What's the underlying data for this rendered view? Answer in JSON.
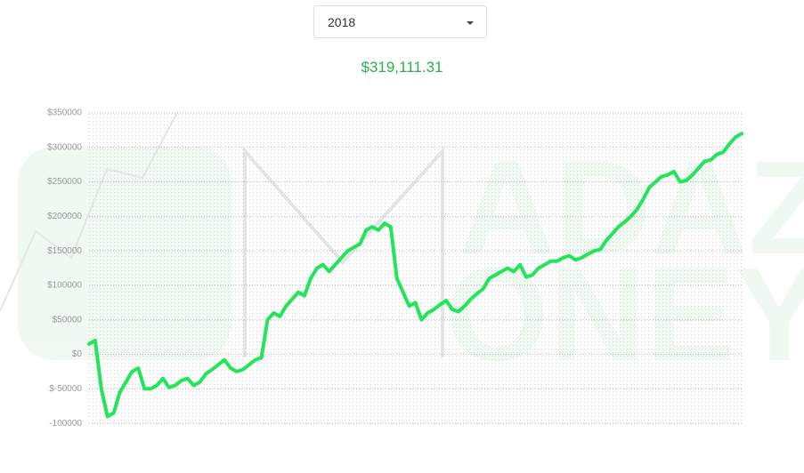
{
  "dropdown": {
    "selected": "2018"
  },
  "total": "$319,111.31",
  "watermark": [
    "ADAZ",
    "ONEY"
  ],
  "chart_data": {
    "type": "line",
    "color": "#22e55a",
    "grid": true,
    "ylim": [
      -105000,
      350000
    ],
    "yticks": [
      {
        "value": 350000,
        "label": "$350000"
      },
      {
        "value": 300000,
        "label": "$300000"
      },
      {
        "value": 250000,
        "label": "$250000"
      },
      {
        "value": 200000,
        "label": "$200000"
      },
      {
        "value": 150000,
        "label": "$150000"
      },
      {
        "value": 100000,
        "label": "$100000"
      },
      {
        "value": 50000,
        "label": "$50000"
      },
      {
        "value": 0,
        "label": "$0"
      },
      {
        "value": -50000,
        "label": "$-50000"
      },
      {
        "value": -100000,
        "label": "-100000"
      }
    ],
    "values": [
      15000,
      20000,
      -50000,
      -90000,
      -85000,
      -55000,
      -40000,
      -25000,
      -20000,
      -50000,
      -50000,
      -45000,
      -35000,
      -48000,
      -45000,
      -38000,
      -35000,
      -45000,
      -40000,
      -28000,
      -22000,
      -15000,
      -8000,
      -20000,
      -25000,
      -22000,
      -15000,
      -8000,
      -5000,
      50000,
      60000,
      55000,
      70000,
      80000,
      90000,
      85000,
      110000,
      125000,
      130000,
      120000,
      130000,
      140000,
      150000,
      155000,
      160000,
      180000,
      185000,
      180000,
      190000,
      185000,
      110000,
      90000,
      70000,
      75000,
      50000,
      60000,
      65000,
      72000,
      78000,
      65000,
      62000,
      70000,
      80000,
      88000,
      95000,
      110000,
      115000,
      120000,
      125000,
      120000,
      130000,
      112000,
      115000,
      125000,
      130000,
      135000,
      135000,
      140000,
      143000,
      137000,
      140000,
      145000,
      150000,
      152000,
      165000,
      175000,
      185000,
      192000,
      200000,
      210000,
      225000,
      242000,
      250000,
      258000,
      260000,
      265000,
      250000,
      252000,
      260000,
      270000,
      280000,
      282000,
      290000,
      293000,
      305000,
      315000,
      320000
    ]
  }
}
